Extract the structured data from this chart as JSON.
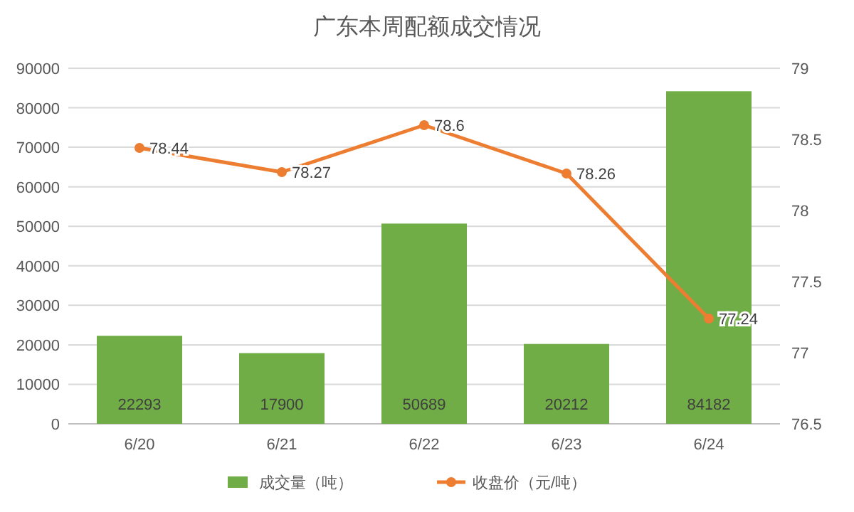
{
  "chart_data": {
    "type": "bar",
    "title": "广东本周配额成交情况",
    "categories": [
      "6/20",
      "6/21",
      "6/22",
      "6/23",
      "6/24"
    ],
    "series": [
      {
        "name": "成交量（吨）",
        "color": "#70ad47",
        "values": [
          22293,
          17900,
          50689,
          20212,
          84182
        ]
      },
      {
        "name": "收盘价（元/吨）",
        "type": "line",
        "axis": "y2",
        "color": "#ed7d31",
        "values": [
          78.44,
          78.27,
          78.6,
          78.26,
          77.24
        ]
      }
    ],
    "ylim": [
      0,
      90000
    ],
    "yticks": [
      0,
      10000,
      20000,
      30000,
      40000,
      50000,
      60000,
      70000,
      80000,
      90000
    ],
    "y2lim": [
      76.5,
      79
    ],
    "y2ticks": [
      76.5,
      77,
      77.5,
      78,
      78.5,
      79
    ],
    "grid": "y",
    "legend": "bottom",
    "marker": "circle",
    "data_labels": true
  }
}
